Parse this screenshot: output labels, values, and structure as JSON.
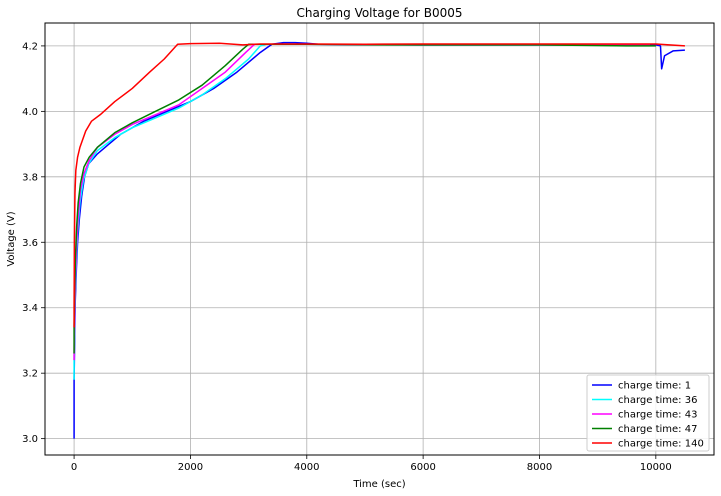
{
  "chart_data": {
    "type": "line",
    "title": "Charging Voltage for B0005",
    "xlabel": "Time (sec)",
    "ylabel": "Voltage (V)",
    "xlim": [
      -500,
      11000
    ],
    "ylim": [
      2.95,
      4.27
    ],
    "xticks": [
      0,
      2000,
      4000,
      6000,
      8000,
      10000
    ],
    "yticks": [
      3.0,
      3.2,
      3.4,
      3.6,
      3.8,
      4.0,
      4.2
    ],
    "xtick_labels": [
      "0",
      "2000",
      "4000",
      "6000",
      "8000",
      "10000"
    ],
    "ytick_labels": [
      "3.0",
      "3.2",
      "3.4",
      "3.6",
      "3.8",
      "4.0",
      "4.2"
    ],
    "grid": true,
    "legend_position": "lower-right",
    "series": [
      {
        "name": "charge time: 1",
        "color": "#0000ff",
        "points": [
          [
            0,
            3.0
          ],
          [
            0,
            3.18
          ],
          [
            10,
            3.3
          ],
          [
            20,
            3.42
          ],
          [
            40,
            3.52
          ],
          [
            60,
            3.6
          ],
          [
            90,
            3.67
          ],
          [
            130,
            3.74
          ],
          [
            180,
            3.8
          ],
          [
            250,
            3.84
          ],
          [
            400,
            3.87
          ],
          [
            600,
            3.9
          ],
          [
            800,
            3.93
          ],
          [
            1200,
            3.97
          ],
          [
            1600,
            4.0
          ],
          [
            2000,
            4.03
          ],
          [
            2400,
            4.07
          ],
          [
            2800,
            4.12
          ],
          [
            3200,
            4.18
          ],
          [
            3400,
            4.205
          ],
          [
            3600,
            4.21
          ],
          [
            3800,
            4.21
          ],
          [
            4000,
            4.208
          ],
          [
            4200,
            4.205
          ],
          [
            6000,
            4.203
          ],
          [
            8000,
            4.203
          ],
          [
            10000,
            4.203
          ],
          [
            10080,
            4.2
          ],
          [
            10100,
            4.13
          ],
          [
            10150,
            4.17
          ],
          [
            10300,
            4.185
          ],
          [
            10500,
            4.187
          ]
        ]
      },
      {
        "name": "charge time: 36",
        "color": "#00ffff",
        "points": [
          [
            0,
            3.18
          ],
          [
            0,
            3.24
          ],
          [
            10,
            3.35
          ],
          [
            20,
            3.45
          ],
          [
            40,
            3.55
          ],
          [
            60,
            3.63
          ],
          [
            100,
            3.72
          ],
          [
            160,
            3.79
          ],
          [
            250,
            3.84
          ],
          [
            400,
            3.88
          ],
          [
            700,
            3.92
          ],
          [
            1000,
            3.95
          ],
          [
            1400,
            3.98
          ],
          [
            1800,
            4.01
          ],
          [
            2200,
            4.05
          ],
          [
            2600,
            4.1
          ],
          [
            3000,
            4.16
          ],
          [
            3200,
            4.2
          ],
          [
            3300,
            4.205
          ],
          [
            4000,
            4.205
          ],
          [
            6000,
            4.203
          ],
          [
            8000,
            4.203
          ],
          [
            9800,
            4.203
          ]
        ]
      },
      {
        "name": "charge time: 43",
        "color": "#ff00ff",
        "points": [
          [
            0,
            3.24
          ],
          [
            0,
            3.26
          ],
          [
            10,
            3.38
          ],
          [
            25,
            3.5
          ],
          [
            45,
            3.6
          ],
          [
            70,
            3.68
          ],
          [
            110,
            3.76
          ],
          [
            170,
            3.81
          ],
          [
            260,
            3.85
          ],
          [
            400,
            3.89
          ],
          [
            700,
            3.93
          ],
          [
            1000,
            3.96
          ],
          [
            1400,
            3.99
          ],
          [
            1800,
            4.02
          ],
          [
            2200,
            4.07
          ],
          [
            2600,
            4.12
          ],
          [
            2950,
            4.18
          ],
          [
            3100,
            4.205
          ],
          [
            4000,
            4.205
          ],
          [
            6000,
            4.203
          ],
          [
            8000,
            4.203
          ],
          [
            9900,
            4.203
          ]
        ]
      },
      {
        "name": "charge time: 47",
        "color": "#008000",
        "points": [
          [
            0,
            3.26
          ],
          [
            0,
            3.34
          ],
          [
            10,
            3.45
          ],
          [
            25,
            3.56
          ],
          [
            45,
            3.65
          ],
          [
            70,
            3.72
          ],
          [
            110,
            3.78
          ],
          [
            170,
            3.83
          ],
          [
            260,
            3.86
          ],
          [
            400,
            3.89
          ],
          [
            700,
            3.935
          ],
          [
            1000,
            3.965
          ],
          [
            1400,
            4.0
          ],
          [
            1800,
            4.035
          ],
          [
            2200,
            4.08
          ],
          [
            2600,
            4.14
          ],
          [
            2900,
            4.19
          ],
          [
            3000,
            4.205
          ],
          [
            4000,
            4.205
          ],
          [
            6000,
            4.203
          ],
          [
            8000,
            4.203
          ],
          [
            9500,
            4.2
          ],
          [
            10000,
            4.2
          ]
        ]
      },
      {
        "name": "charge time: 140",
        "color": "#ff0000",
        "points": [
          [
            0,
            3.34
          ],
          [
            0,
            3.4
          ],
          [
            5,
            3.6
          ],
          [
            15,
            3.75
          ],
          [
            30,
            3.82
          ],
          [
            60,
            3.86
          ],
          [
            100,
            3.89
          ],
          [
            200,
            3.94
          ],
          [
            300,
            3.97
          ],
          [
            450,
            3.99
          ],
          [
            700,
            4.03
          ],
          [
            1000,
            4.07
          ],
          [
            1300,
            4.12
          ],
          [
            1550,
            4.16
          ],
          [
            1780,
            4.205
          ],
          [
            2000,
            4.207
          ],
          [
            2500,
            4.208
          ],
          [
            2900,
            4.203
          ],
          [
            3200,
            4.206
          ],
          [
            3600,
            4.206
          ],
          [
            4000,
            4.206
          ],
          [
            5000,
            4.205
          ],
          [
            6000,
            4.206
          ],
          [
            7000,
            4.206
          ],
          [
            8000,
            4.206
          ],
          [
            9000,
            4.206
          ],
          [
            10000,
            4.206
          ],
          [
            10500,
            4.2
          ]
        ]
      }
    ]
  }
}
